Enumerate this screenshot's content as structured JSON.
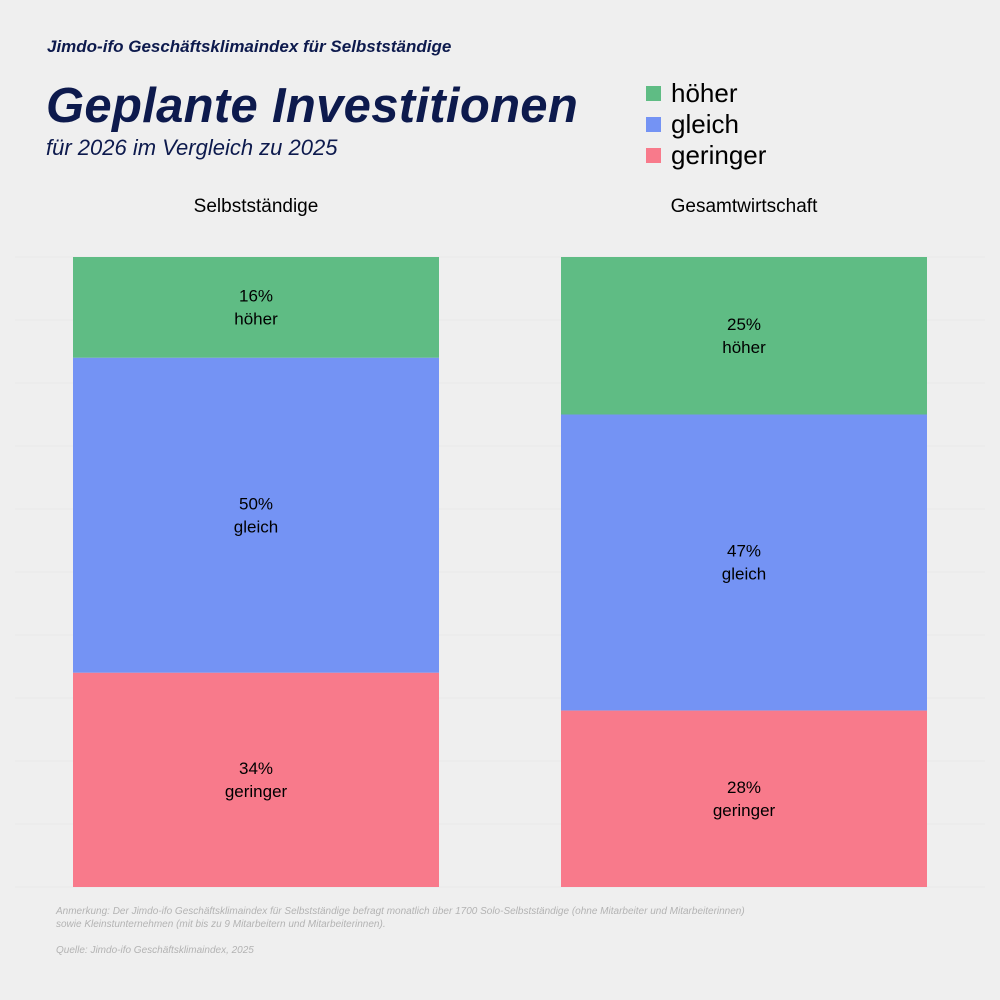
{
  "kicker": "Jimdo-ifo Geschäftsklimaindex für Selbstständige",
  "title": "Geplante Investitionen",
  "subtitle": "für 2026 im Vergleich zu 2025",
  "legend": [
    {
      "label": "höher",
      "color": "#5fbc84"
    },
    {
      "label": "gleich",
      "color": "#7493f4"
    },
    {
      "label": "geringer",
      "color": "#f87a8b"
    }
  ],
  "panels": [
    {
      "title": "Selbstständige"
    },
    {
      "title": "Gesamtwirtschaft"
    }
  ],
  "note": "Anmerkung: Der Jimdo-ifo Geschäftsklimaindex für Selbstständige befragt monatlich über 1700 Solo-Selbstständige (ohne Mitarbeiter und Mitarbeiterinnen) sowie Kleinstunternehmen (mit bis zu 9 Mitarbeitern und Mitarbeiterinnen).",
  "source": "Quelle: Jimdo-ifo Geschäftsklimaindex, 2025",
  "chart_data": {
    "type": "bar",
    "stacked": true,
    "percent": true,
    "categories": [
      "Selbstständige",
      "Gesamtwirtschaft"
    ],
    "series": [
      {
        "name": "höher",
        "values": [
          16,
          25
        ],
        "color": "#5fbc84"
      },
      {
        "name": "gleich",
        "values": [
          50,
          47
        ],
        "color": "#7493f4"
      },
      {
        "name": "geringer",
        "values": [
          34,
          28
        ],
        "color": "#f87a8b"
      }
    ],
    "unit": "%",
    "title": "Geplante Investitionen",
    "legend_position": "top-right"
  }
}
